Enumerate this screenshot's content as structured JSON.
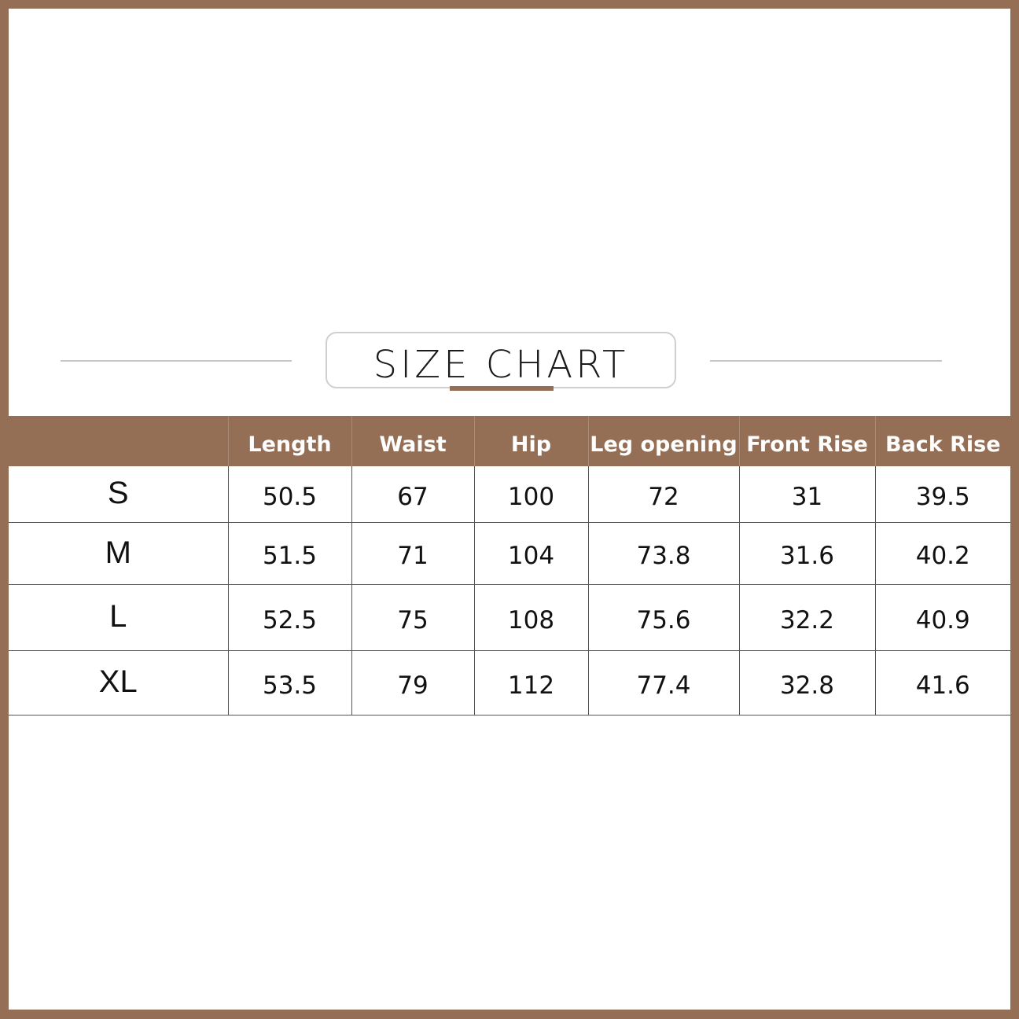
{
  "title": "SIZE CHART",
  "colors": {
    "accent": "#946f55",
    "rule": "#c8c8c8"
  },
  "table": {
    "headers": [
      "",
      "Length",
      "Waist",
      "Hip",
      "Leg opening",
      "Front Rise",
      "Back Rise"
    ],
    "rows": [
      [
        "S",
        "50.5",
        "67",
        "100",
        "72",
        "31",
        "39.5"
      ],
      [
        "M",
        "51.5",
        "71",
        "104",
        "73.8",
        "31.6",
        "40.2"
      ],
      [
        "L",
        "52.5",
        "75",
        "108",
        "75.6",
        "32.2",
        "40.9"
      ],
      [
        "XL",
        "53.5",
        "79",
        "112",
        "77.4",
        "32.8",
        "41.6"
      ]
    ]
  }
}
